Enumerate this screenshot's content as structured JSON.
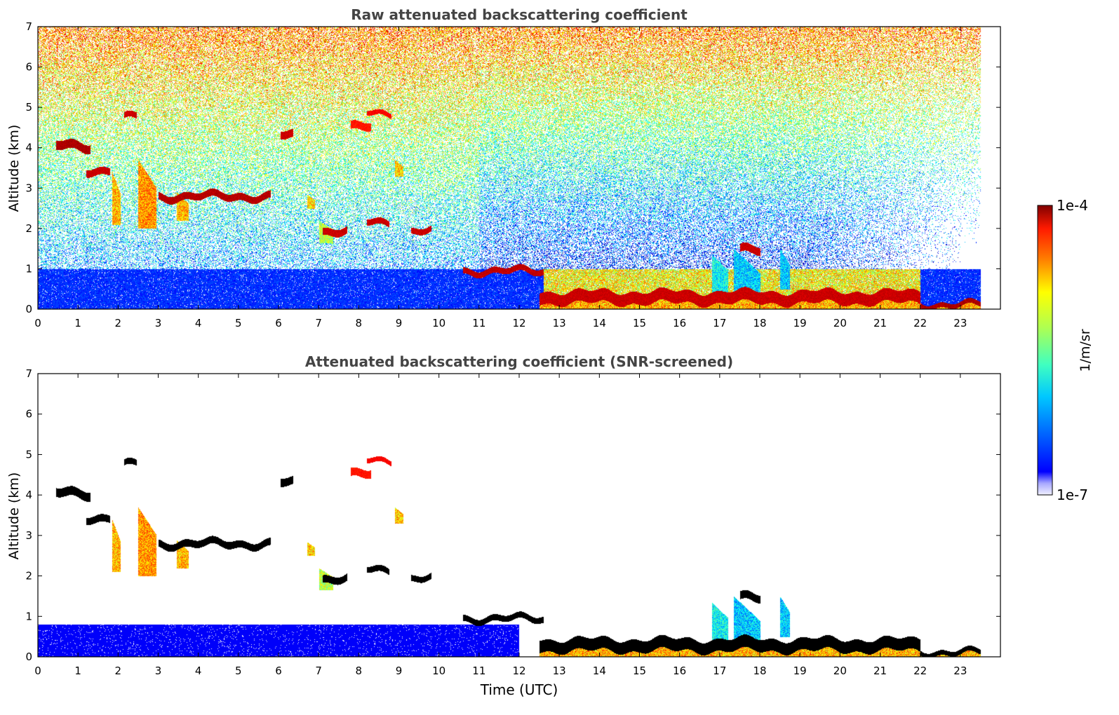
{
  "chart_data": [
    {
      "type": "heatmap",
      "title": "Raw attenuated backscattering coefficient",
      "xlabel": "",
      "ylabel": "Altitude (km)",
      "xlim": [
        0,
        24
      ],
      "ylim": [
        0,
        7
      ],
      "x_ticks": [
        "0",
        "1",
        "2",
        "3",
        "4",
        "5",
        "6",
        "7",
        "8",
        "9",
        "10",
        "11",
        "12",
        "13",
        "14",
        "15",
        "16",
        "17",
        "18",
        "19",
        "20",
        "21",
        "22",
        "23"
      ],
      "y_ticks": [
        "0",
        "1",
        "2",
        "3",
        "4",
        "5",
        "6",
        "7"
      ],
      "data_end_hour": 23.5,
      "features": [
        {
          "kind": "cloud",
          "t0": 0.45,
          "t1": 1.3,
          "alt": 4.05,
          "thick": 0.22,
          "level": 0.98
        },
        {
          "kind": "cloud",
          "t0": 2.15,
          "t1": 2.45,
          "alt": 4.75,
          "thick": 0.15,
          "level": 0.95
        },
        {
          "kind": "cloud",
          "t0": 1.2,
          "t1": 1.8,
          "alt": 3.45,
          "thick": 0.18,
          "level": 0.95
        },
        {
          "kind": "cloud",
          "t0": 3.0,
          "t1": 5.8,
          "alt": 2.8,
          "thick": 0.18,
          "level": 0.97
        },
        {
          "kind": "cloud",
          "t0": 6.05,
          "t1": 6.35,
          "alt": 4.3,
          "thick": 0.2,
          "level": 0.95
        },
        {
          "kind": "cloud",
          "t0": 7.8,
          "t1": 8.3,
          "alt": 4.5,
          "thick": 0.2,
          "level": 0.88
        },
        {
          "kind": "cloud",
          "t0": 8.2,
          "t1": 8.8,
          "alt": 4.85,
          "thick": 0.12,
          "level": 0.9
        },
        {
          "kind": "cloud",
          "t0": 7.1,
          "t1": 7.7,
          "alt": 1.95,
          "thick": 0.18,
          "level": 0.95
        },
        {
          "kind": "cloud",
          "t0": 8.2,
          "t1": 8.75,
          "alt": 2.15,
          "thick": 0.15,
          "level": 0.95
        },
        {
          "kind": "cloud",
          "t0": 9.3,
          "t1": 9.8,
          "alt": 1.95,
          "thick": 0.15,
          "level": 0.95
        },
        {
          "kind": "cloud",
          "t0": 10.6,
          "t1": 12.6,
          "alt": 0.95,
          "thick": 0.15,
          "level": 0.96
        },
        {
          "kind": "cloud",
          "t0": 17.5,
          "t1": 18.0,
          "alt": 1.45,
          "thick": 0.2,
          "level": 0.95
        },
        {
          "kind": "fallstreak",
          "t0": 1.85,
          "t1": 2.05,
          "alt_top": 3.4,
          "alt_bottom": 2.1,
          "level": 0.82
        },
        {
          "kind": "fallstreak",
          "t0": 2.5,
          "t1": 2.95,
          "alt_top": 3.7,
          "alt_bottom": 2.0,
          "level": 0.85
        },
        {
          "kind": "fallstreak",
          "t0": 3.45,
          "t1": 3.75,
          "alt_top": 2.9,
          "alt_bottom": 2.2,
          "level": 0.82
        },
        {
          "kind": "fallstreak",
          "t0": 6.7,
          "t1": 6.9,
          "alt_top": 2.85,
          "alt_bottom": 2.5,
          "level": 0.78
        },
        {
          "kind": "fallstreak",
          "t0": 7.0,
          "t1": 7.35,
          "alt_top": 2.2,
          "alt_bottom": 1.65,
          "level": 0.68
        },
        {
          "kind": "fallstreak",
          "t0": 8.9,
          "t1": 9.1,
          "alt_top": 3.7,
          "alt_bottom": 3.3,
          "level": 0.8
        },
        {
          "kind": "boundary_layer",
          "t0": 12.5,
          "t1": 22.0,
          "alt": 0.3,
          "thick": 0.3,
          "level": 0.95
        },
        {
          "kind": "boundary_layer",
          "t0": 22.0,
          "t1": 23.5,
          "alt": 0.12,
          "thick": 0.12,
          "level": 0.98
        },
        {
          "kind": "plume",
          "t0": 16.8,
          "t1": 17.2,
          "alt_top": 1.35,
          "alt_bottom": 0.4,
          "level": 0.5
        },
        {
          "kind": "plume",
          "t0": 17.35,
          "t1": 18.0,
          "alt_top": 1.5,
          "alt_bottom": 0.0,
          "level": 0.45
        },
        {
          "kind": "plume",
          "t0": 18.5,
          "t1": 18.75,
          "alt_top": 1.5,
          "alt_bottom": 0.5,
          "level": 0.45
        }
      ]
    },
    {
      "type": "heatmap",
      "title": "Attenuated backscattering coefficient (SNR-screened)",
      "xlabel": "Time (UTC)",
      "ylabel": "Altitude (km)",
      "xlim": [
        0,
        24
      ],
      "ylim": [
        0,
        7
      ],
      "x_ticks": [
        "0",
        "1",
        "2",
        "3",
        "4",
        "5",
        "6",
        "7",
        "8",
        "9",
        "10",
        "11",
        "12",
        "13",
        "14",
        "15",
        "16",
        "17",
        "18",
        "19",
        "20",
        "21",
        "22",
        "23"
      ],
      "y_ticks": [
        "0",
        "1",
        "2",
        "3",
        "4",
        "5",
        "6",
        "7"
      ],
      "data_end_hour": 23.5,
      "saturated_color": "#000000"
    }
  ],
  "colorbar": {
    "label": "1/m/sr",
    "max_label": "1e-4",
    "min_label": "1e-7",
    "scale": "log",
    "range": [
      1e-07,
      0.0001
    ],
    "colormap": "jet"
  },
  "colors": {
    "title": "#444444",
    "axis": "#000000",
    "background": "#ffffff"
  }
}
